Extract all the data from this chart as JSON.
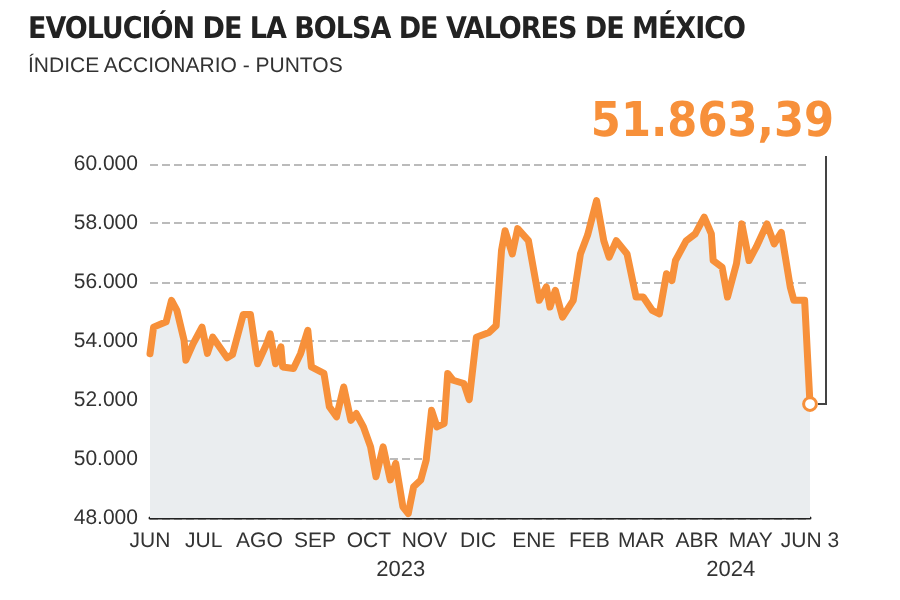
{
  "chart_data": {
    "type": "area",
    "title": "EVOLUCIÓN DE LA BOLSA DE VALORES DE MÉXICO",
    "subtitle": "ÍNDICE ACCIONARIO - PUNTOS",
    "annotations": [
      {
        "text": "51.863,39",
        "x": "2024-06-03",
        "y": 51863.39
      },
      "2023",
      "2024"
    ],
    "xlim": [
      "2023-06-01",
      "2024-06-03"
    ],
    "xticks": [
      {
        "value": "2023-06-01",
        "label": "JUN"
      },
      {
        "value": "2023-07-01",
        "label": "JUL"
      },
      {
        "value": "2023-08-01",
        "label": "AGO"
      },
      {
        "value": "2023-09-01",
        "label": "SEP"
      },
      {
        "value": "2023-10-01",
        "label": "OCT"
      },
      {
        "value": "2023-11-01",
        "label": "NOV"
      },
      {
        "value": "2023-12-01",
        "label": "DIC"
      },
      {
        "value": "2024-01-01",
        "label": "ENE"
      },
      {
        "value": "2024-02-01",
        "label": "FEB"
      },
      {
        "value": "2024-03-01",
        "label": "MAR"
      },
      {
        "value": "2024-04-01",
        "label": "ABR"
      },
      {
        "value": "2024-05-01",
        "label": "MAY"
      },
      {
        "value": "2024-06-03",
        "label": "JUN 3"
      }
    ],
    "ylim": [
      48000,
      60000
    ],
    "yticks": [
      {
        "value": 48000,
        "label": "48.000"
      },
      {
        "value": 50000,
        "label": "50.000"
      },
      {
        "value": 52000,
        "label": "52.000"
      },
      {
        "value": 54000,
        "label": "54.000"
      },
      {
        "value": 56000,
        "label": "56.000"
      },
      {
        "value": 58000,
        "label": "58.000"
      },
      {
        "value": 60000,
        "label": "60.000"
      }
    ],
    "grid": "y",
    "marker": "none",
    "line_style": "solid",
    "series": [
      {
        "color": "#f7903a",
        "x": [
          "2023-06-01",
          "2023-06-03",
          "2023-06-10",
          "2023-06-13",
          "2023-06-16",
          "2023-06-20",
          "2023-06-21",
          "2023-06-25",
          "2023-06-30",
          "2023-07-03",
          "2023-07-06",
          "2023-07-14",
          "2023-07-17",
          "2023-07-23",
          "2023-07-27",
          "2023-07-31",
          "2023-08-05",
          "2023-08-07",
          "2023-08-10",
          "2023-08-13",
          "2023-08-14",
          "2023-08-20",
          "2023-08-24",
          "2023-08-28",
          "2023-08-30",
          "2023-09-06",
          "2023-09-09",
          "2023-09-13",
          "2023-09-17",
          "2023-09-21",
          "2023-09-24",
          "2023-09-28",
          "2023-10-02",
          "2023-10-05",
          "2023-10-09",
          "2023-10-13",
          "2023-10-16",
          "2023-10-20",
          "2023-10-23",
          "2023-10-26",
          "2023-10-30",
          "2023-11-02",
          "2023-11-05",
          "2023-11-08",
          "2023-11-12",
          "2023-11-14",
          "2023-11-17",
          "2023-11-23",
          "2023-11-26",
          "2023-11-30",
          "2023-12-07",
          "2023-12-11",
          "2023-12-14",
          "2023-12-16",
          "2023-12-20",
          "2023-12-23",
          "2023-12-29",
          "2024-01-02",
          "2024-01-04",
          "2024-01-08",
          "2024-01-10",
          "2024-01-13",
          "2024-01-17",
          "2024-01-23",
          "2024-01-27",
          "2024-01-31",
          "2024-02-05",
          "2024-02-09",
          "2024-02-12",
          "2024-02-16",
          "2024-02-22",
          "2024-02-27",
          "2024-03-02",
          "2024-03-07",
          "2024-03-11",
          "2024-03-15",
          "2024-03-18",
          "2024-03-20",
          "2024-03-26",
          "2024-03-31",
          "2024-04-05",
          "2024-04-09",
          "2024-04-10",
          "2024-04-15",
          "2024-04-18",
          "2024-04-23",
          "2024-04-26",
          "2024-04-30",
          "2024-05-04",
          "2024-05-10",
          "2024-05-14",
          "2024-05-18",
          "2024-05-23",
          "2024-05-25",
          "2024-05-31",
          "2024-06-03"
        ],
        "values": [
          53570,
          54470,
          54650,
          55380,
          55040,
          54020,
          53350,
          53900,
          54470,
          53580,
          54130,
          53430,
          53540,
          54900,
          54900,
          53230,
          53900,
          54240,
          53230,
          53800,
          53120,
          53070,
          53580,
          54360,
          53120,
          52900,
          51770,
          51430,
          52440,
          51310,
          51540,
          51090,
          50410,
          49400,
          50410,
          49290,
          49850,
          48380,
          48150,
          49060,
          49290,
          49960,
          51650,
          51090,
          51200,
          52900,
          52670,
          52560,
          52010,
          54130,
          54290,
          54520,
          57070,
          57740,
          56950,
          57810,
          57400,
          56050,
          55380,
          55830,
          55150,
          55720,
          54810,
          55380,
          56950,
          57590,
          58760,
          57400,
          56840,
          57400,
          56950,
          55490,
          55490,
          55040,
          54920,
          56280,
          56050,
          56730,
          57400,
          57630,
          58200,
          57630,
          56730,
          56500,
          55490,
          56620,
          57970,
          56730,
          57180,
          57970,
          57290,
          57680,
          55830,
          55380,
          55380,
          51863.39
        ]
      }
    ]
  }
}
